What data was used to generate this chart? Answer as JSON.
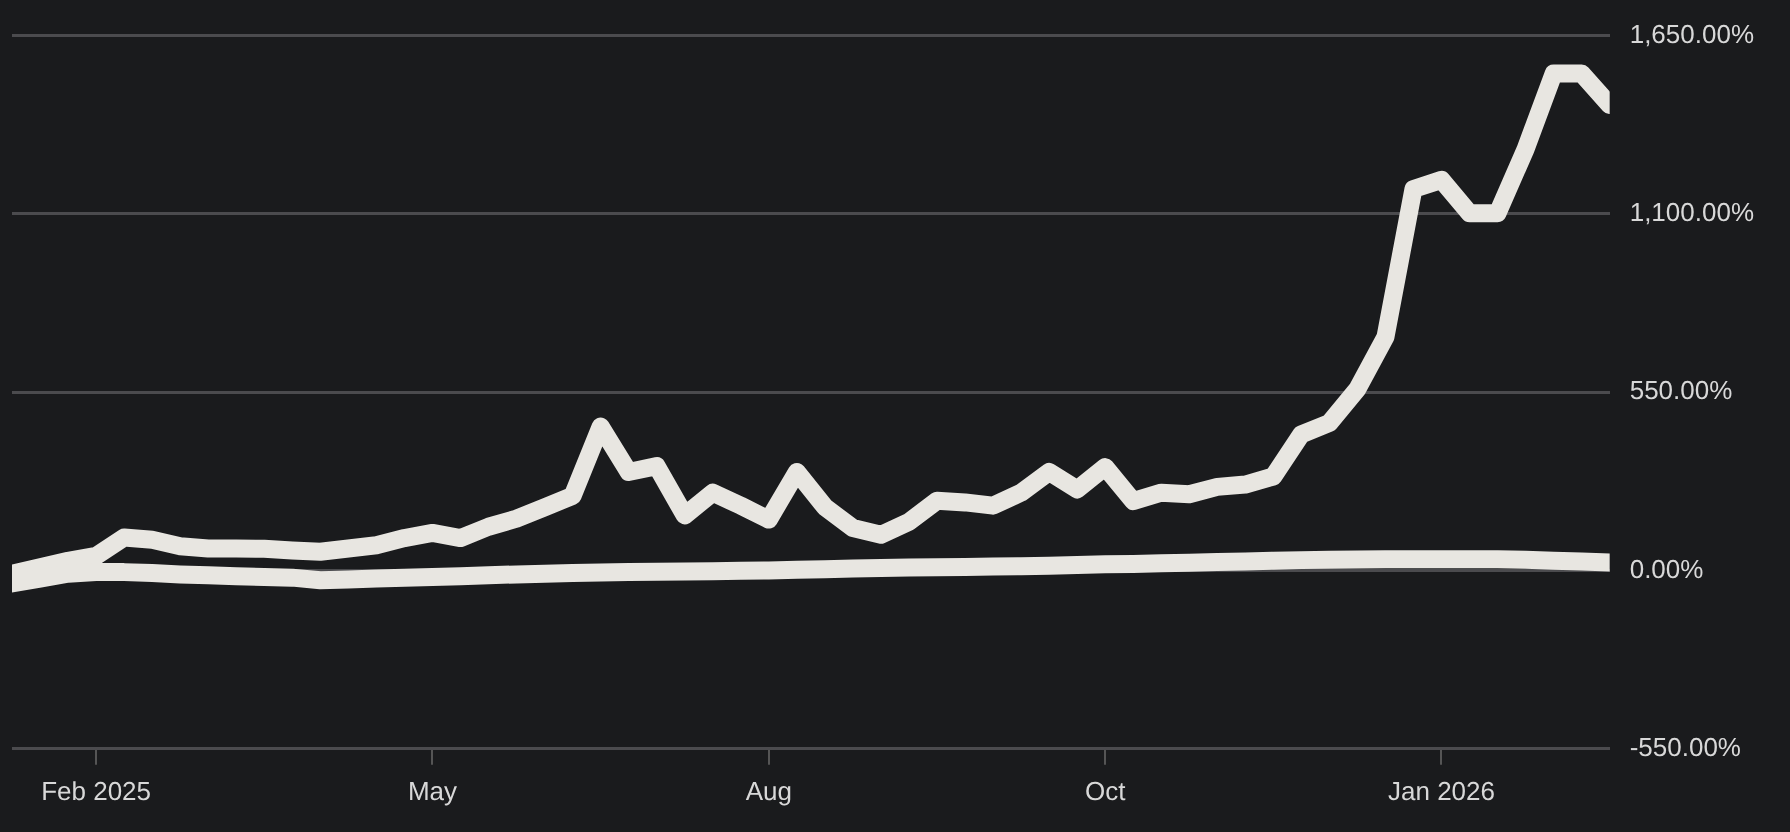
{
  "chart_data": {
    "type": "line",
    "categories": [
      null,
      null,
      null,
      "Feb 2025",
      null,
      null,
      null,
      null,
      null,
      null,
      null,
      null,
      null,
      null,
      null,
      "May",
      null,
      null,
      null,
      null,
      null,
      null,
      null,
      null,
      null,
      null,
      null,
      "Aug",
      null,
      null,
      null,
      null,
      null,
      null,
      null,
      null,
      null,
      null,
      null,
      "Oct",
      null,
      null,
      null,
      null,
      null,
      null,
      null,
      null,
      null,
      null,
      null,
      "Jan 2026",
      null,
      null,
      null,
      null,
      null,
      null
    ],
    "series": [
      {
        "color": "#e8e6e1",
        "values": [
          -10,
          10,
          30,
          45,
          102,
          95,
          75,
          68,
          68,
          67,
          62,
          58,
          68,
          78,
          100,
          116,
          100,
          135,
          160,
          195,
          230,
          444,
          304,
          322,
          170,
          240,
          200,
          157,
          304,
          196,
          131,
          110,
          150,
          215,
          210,
          200,
          240,
          304,
          250,
          319,
          214,
          240,
          235,
          258,
          265,
          290,
          420,
          455,
          560,
          720,
          1177,
          1205,
          1102,
          1102,
          1300,
          1533,
          1533,
          1436
        ]
      },
      {
        "color": "#e8e6e1",
        "values": [
          -40,
          -25,
          -10,
          -5,
          -5,
          -8,
          -12,
          -15,
          -18,
          -20,
          -22,
          -30,
          -28,
          -25,
          -22,
          -20,
          -18,
          -15,
          -12,
          -10,
          -8,
          -6,
          -5,
          -4,
          -3,
          -2,
          -1,
          0,
          2,
          4,
          6,
          8,
          9,
          10,
          11,
          12,
          13,
          15,
          17,
          19,
          20,
          22,
          24,
          26,
          28,
          30,
          32,
          33,
          34,
          35,
          35,
          35,
          35,
          35,
          33,
          30,
          28,
          25
        ]
      }
    ],
    "ylim": [
      -550,
      1650
    ],
    "yticks": [
      {
        "value": -550,
        "label": "-550.00%"
      },
      {
        "value": 0,
        "label": "0.00%"
      },
      {
        "value": 550,
        "label": "550.00%"
      },
      {
        "value": 1100,
        "label": "1,100.00%"
      },
      {
        "value": 1650,
        "label": "1,650.00%"
      }
    ],
    "grid": "y",
    "legend": false,
    "marker": "none",
    "line_style": "solid"
  }
}
